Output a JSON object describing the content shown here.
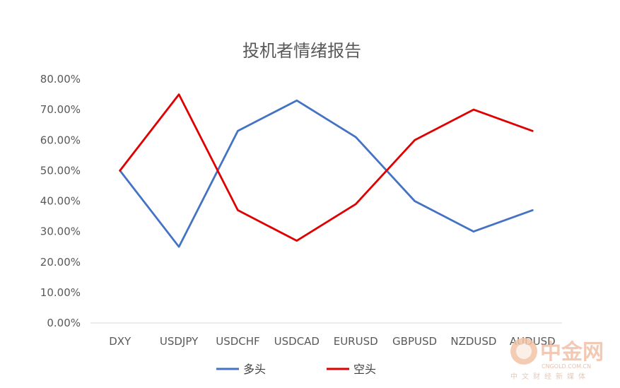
{
  "chart_data": {
    "type": "line",
    "title": "投机者情绪报告",
    "categories": [
      "DXY",
      "USDJPY",
      "USDCHF",
      "USDCAD",
      "EURUSD",
      "GBPUSD",
      "NZDUSD",
      "AUDUSD"
    ],
    "series": [
      {
        "name": "多头",
        "color": "#4472c4",
        "values": [
          0.5,
          0.25,
          0.63,
          0.73,
          0.61,
          0.4,
          0.3,
          0.37
        ]
      },
      {
        "name": "空头",
        "color": "#e00000",
        "values": [
          0.5,
          0.75,
          0.37,
          0.27,
          0.39,
          0.6,
          0.7,
          0.63
        ]
      }
    ],
    "ylim": [
      0,
      0.8
    ],
    "yticks": [
      "0.00%",
      "10.00%",
      "20.00%",
      "30.00%",
      "40.00%",
      "50.00%",
      "60.00%",
      "70.00%",
      "80.00%"
    ],
    "grid": false,
    "legend": "bottom"
  },
  "watermark": {
    "logo": "中金网",
    "url": "CNGOLD.COM.CN",
    "tagline": "中文财经新媒体"
  }
}
